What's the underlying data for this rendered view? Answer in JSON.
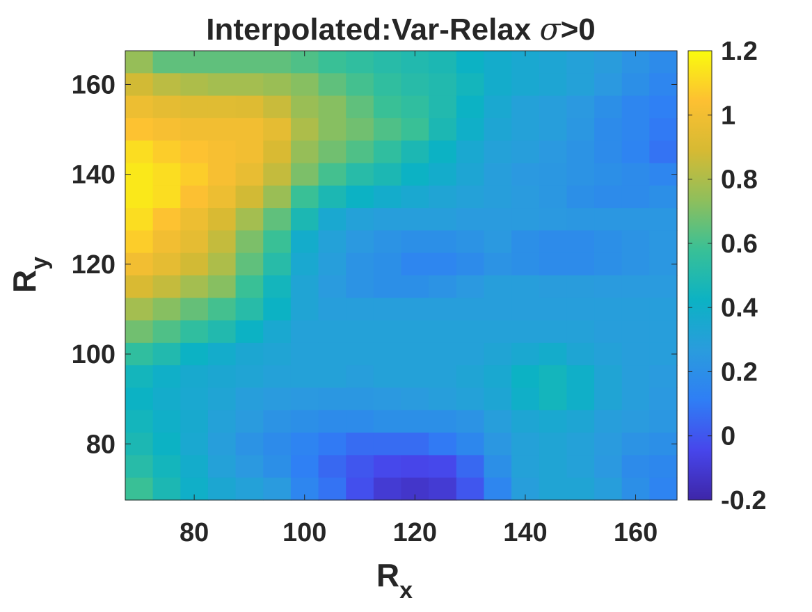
{
  "chart_data": {
    "type": "heatmap",
    "title": {
      "main": "Interpolated:Var-Relax ",
      "symbol": "σ",
      "suffix": ">0"
    },
    "xlabel": {
      "main": "R",
      "sub": "x"
    },
    "ylabel": {
      "main": "R",
      "sub": "y"
    },
    "xlim": [
      67.5,
      167.5
    ],
    "ylim": [
      67.5,
      167.5
    ],
    "x_ticks": [
      80,
      100,
      120,
      140,
      160
    ],
    "y_ticks": [
      80,
      100,
      120,
      140,
      160
    ],
    "x_tick_labels": [
      "80",
      "100",
      "120",
      "140",
      "160"
    ],
    "y_tick_labels": [
      "80",
      "100",
      "120",
      "140",
      "160"
    ],
    "x": [
      70,
      75,
      80,
      85,
      90,
      95,
      100,
      105,
      110,
      115,
      120,
      125,
      130,
      135,
      140,
      145,
      150,
      155,
      160,
      165
    ],
    "y": [
      165,
      160,
      155,
      150,
      145,
      140,
      135,
      130,
      125,
      120,
      115,
      110,
      105,
      100,
      95,
      90,
      85,
      80,
      75,
      70
    ],
    "z": [
      [
        0.75,
        0.65,
        0.65,
        0.65,
        0.65,
        0.65,
        0.62,
        0.58,
        0.55,
        0.52,
        0.5,
        0.48,
        0.42,
        0.38,
        0.35,
        0.33,
        0.3,
        0.27,
        0.22,
        0.18
      ],
      [
        0.88,
        0.83,
        0.8,
        0.78,
        0.78,
        0.76,
        0.72,
        0.65,
        0.6,
        0.55,
        0.52,
        0.5,
        0.45,
        0.38,
        0.35,
        0.33,
        0.3,
        0.25,
        0.2,
        0.15
      ],
      [
        0.98,
        0.95,
        0.93,
        0.93,
        0.92,
        0.86,
        0.76,
        0.72,
        0.65,
        0.58,
        0.55,
        0.5,
        0.42,
        0.35,
        0.3,
        0.28,
        0.25,
        0.2,
        0.15,
        0.12
      ],
      [
        1.05,
        1.02,
        1.0,
        1.0,
        1.0,
        0.95,
        0.8,
        0.72,
        0.68,
        0.62,
        0.58,
        0.48,
        0.4,
        0.33,
        0.3,
        0.28,
        0.24,
        0.18,
        0.15,
        0.1
      ],
      [
        1.12,
        1.08,
        1.05,
        1.02,
        1.0,
        0.9,
        0.75,
        0.68,
        0.62,
        0.55,
        0.48,
        0.42,
        0.35,
        0.3,
        0.28,
        0.25,
        0.22,
        0.18,
        0.14,
        0.08
      ],
      [
        1.15,
        1.12,
        1.08,
        1.02,
        0.96,
        0.85,
        0.7,
        0.6,
        0.52,
        0.48,
        0.42,
        0.38,
        0.33,
        0.28,
        0.25,
        0.24,
        0.22,
        0.2,
        0.18,
        0.15
      ],
      [
        1.15,
        1.12,
        1.04,
        0.98,
        0.88,
        0.76,
        0.58,
        0.48,
        0.42,
        0.38,
        0.35,
        0.32,
        0.3,
        0.28,
        0.26,
        0.24,
        0.2,
        0.18,
        0.18,
        0.2
      ],
      [
        1.12,
        1.05,
        0.98,
        0.9,
        0.78,
        0.65,
        0.48,
        0.35,
        0.3,
        0.28,
        0.28,
        0.28,
        0.26,
        0.26,
        0.26,
        0.25,
        0.24,
        0.24,
        0.24,
        0.24
      ],
      [
        1.08,
        1.0,
        0.95,
        0.85,
        0.7,
        0.58,
        0.38,
        0.3,
        0.25,
        0.22,
        0.2,
        0.2,
        0.22,
        0.25,
        0.2,
        0.18,
        0.18,
        0.2,
        0.22,
        0.24
      ],
      [
        1.0,
        0.95,
        0.88,
        0.8,
        0.65,
        0.52,
        0.35,
        0.28,
        0.22,
        0.2,
        0.15,
        0.15,
        0.18,
        0.22,
        0.2,
        0.18,
        0.18,
        0.2,
        0.22,
        0.24
      ],
      [
        0.9,
        0.85,
        0.78,
        0.72,
        0.58,
        0.45,
        0.32,
        0.26,
        0.22,
        0.2,
        0.2,
        0.22,
        0.25,
        0.28,
        0.28,
        0.27,
        0.27,
        0.26,
        0.26,
        0.26
      ],
      [
        0.78,
        0.72,
        0.66,
        0.6,
        0.52,
        0.42,
        0.32,
        0.28,
        0.28,
        0.28,
        0.28,
        0.28,
        0.28,
        0.28,
        0.28,
        0.28,
        0.28,
        0.28,
        0.28,
        0.28
      ],
      [
        0.68,
        0.62,
        0.55,
        0.5,
        0.42,
        0.35,
        0.3,
        0.3,
        0.3,
        0.3,
        0.3,
        0.3,
        0.3,
        0.3,
        0.3,
        0.3,
        0.3,
        0.28,
        0.28,
        0.28
      ],
      [
        0.55,
        0.5,
        0.42,
        0.38,
        0.34,
        0.32,
        0.3,
        0.3,
        0.3,
        0.3,
        0.3,
        0.3,
        0.3,
        0.32,
        0.35,
        0.38,
        0.33,
        0.3,
        0.28,
        0.28
      ],
      [
        0.45,
        0.4,
        0.36,
        0.34,
        0.32,
        0.3,
        0.3,
        0.3,
        0.28,
        0.3,
        0.3,
        0.3,
        0.32,
        0.35,
        0.42,
        0.45,
        0.4,
        0.32,
        0.28,
        0.26
      ],
      [
        0.42,
        0.38,
        0.35,
        0.32,
        0.28,
        0.26,
        0.25,
        0.24,
        0.24,
        0.25,
        0.26,
        0.28,
        0.3,
        0.33,
        0.4,
        0.45,
        0.4,
        0.32,
        0.28,
        0.25
      ],
      [
        0.45,
        0.4,
        0.36,
        0.3,
        0.26,
        0.22,
        0.2,
        0.18,
        0.18,
        0.2,
        0.2,
        0.2,
        0.22,
        0.28,
        0.33,
        0.35,
        0.33,
        0.28,
        0.26,
        0.24
      ],
      [
        0.48,
        0.42,
        0.35,
        0.28,
        0.22,
        0.18,
        0.14,
        0.1,
        0.06,
        0.06,
        0.06,
        0.1,
        0.16,
        0.24,
        0.3,
        0.32,
        0.3,
        0.26,
        0.22,
        0.2
      ],
      [
        0.52,
        0.45,
        0.38,
        0.3,
        0.25,
        0.2,
        0.12,
        0.05,
        0.0,
        -0.04,
        -0.05,
        -0.04,
        0.05,
        0.2,
        0.3,
        0.32,
        0.3,
        0.25,
        0.18,
        0.16
      ],
      [
        0.58,
        0.48,
        0.4,
        0.34,
        0.3,
        0.26,
        0.15,
        0.08,
        -0.02,
        -0.1,
        -0.12,
        -0.1,
        0.0,
        0.15,
        0.28,
        0.32,
        0.32,
        0.28,
        0.2,
        0.14
      ]
    ],
    "clim": [
      -0.2,
      1.2
    ],
    "colorbar": {
      "ticks": [
        -0.2,
        0,
        0.2,
        0.4,
        0.6,
        0.8,
        1,
        1.2
      ],
      "tick_labels": [
        "-0.2",
        "0",
        "0.2",
        "0.4",
        "0.6",
        "0.8",
        "1",
        "1.2"
      ],
      "location": "right"
    },
    "colormap": "parula",
    "colormap_stops": [
      "#3e26a8",
      "#4746eb",
      "#2f7ef5",
      "#2a9cdd",
      "#0cb2c4",
      "#38c097",
      "#8ebf5c",
      "#d6ba33",
      "#fdc032",
      "#f9fb0e"
    ],
    "grid": false
  }
}
